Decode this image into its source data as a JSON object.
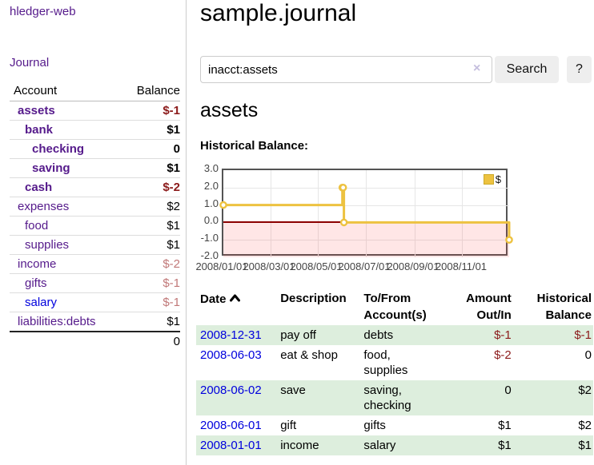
{
  "colors": {
    "link_purple": "#551a8b",
    "link_blue": "#0000dd",
    "negative_strong": "#8b1a1a",
    "negative_soft": "#c17878",
    "row_green": "#ddeedd",
    "series_yellow": "#edc240",
    "zero_line_red": "#8b0000",
    "negative_region_pink": "#fbdcdc"
  },
  "sidebar": {
    "title": "hledger-web",
    "journal_link": "Journal",
    "accounts": {
      "header_account": "Account",
      "header_balance": "Balance",
      "rows": [
        {
          "name": "assets",
          "balance": "$-1"
        },
        {
          "name": "bank",
          "balance": "$1"
        },
        {
          "name": "checking",
          "balance": "0"
        },
        {
          "name": "saving",
          "balance": "$1"
        },
        {
          "name": "cash",
          "balance": "$-2"
        },
        {
          "name": "expenses",
          "balance": "$2"
        },
        {
          "name": "food",
          "balance": "$1"
        },
        {
          "name": "supplies",
          "balance": "$1"
        },
        {
          "name": "income",
          "balance": "$-2"
        },
        {
          "name": "gifts",
          "balance": "$-1"
        },
        {
          "name": "salary",
          "balance": "$-1"
        },
        {
          "name": "liabilities:debts",
          "balance": "$1"
        }
      ],
      "total": "0"
    }
  },
  "main": {
    "title": "sample.journal",
    "search": {
      "value": "inacct:assets",
      "clear_icon": "×",
      "search_button": "Search",
      "help_button": "?"
    },
    "heading": "assets",
    "chart_title": "Historical Balance:"
  },
  "chart_data": {
    "type": "line",
    "style": "step",
    "title": "Historical Balance",
    "series": [
      {
        "name": "$",
        "points": [
          [
            "2008-01-01",
            1
          ],
          [
            "2008-06-01",
            2
          ],
          [
            "2008-06-02",
            2
          ],
          [
            "2008-06-03",
            0
          ],
          [
            "2008-12-31",
            -1
          ]
        ]
      }
    ],
    "x_range": [
      "2008-01-01",
      "2008-12-31"
    ],
    "ylim": [
      -2,
      3
    ],
    "y_ticks": [
      "3.0",
      "2.0",
      "1.0",
      "0.0",
      "-1.0",
      "-2.0"
    ],
    "x_ticks": [
      "2008/01/01",
      "2008/03/01",
      "2008/05/01",
      "2008/07/01",
      "2008/09/01",
      "2008/11/01"
    ],
    "legend": {
      "label": "$",
      "position": "top-right"
    },
    "grid": true,
    "negative_region_shaded": true,
    "zero_line": true
  },
  "transactions": {
    "headers": {
      "date": "Date",
      "description": "Description",
      "tofrom_line1": "To/From",
      "tofrom_line2": "Account(s)",
      "amount_line1": "Amount",
      "amount_line2": "Out/In",
      "hist_line1": "Historical",
      "hist_line2": "Balance"
    },
    "rows": [
      {
        "date": "2008-12-31",
        "description": "pay off",
        "accounts": "debts",
        "amount": "$-1",
        "balance": "$-1"
      },
      {
        "date": "2008-06-03",
        "description": "eat & shop",
        "accounts": "food, supplies",
        "amount": "$-2",
        "balance": "0"
      },
      {
        "date": "2008-06-02",
        "description": "save",
        "accounts": "saving, checking",
        "amount": "0",
        "balance": "$2"
      },
      {
        "date": "2008-06-01",
        "description": "gift",
        "accounts": "gifts",
        "amount": "$1",
        "balance": "$2"
      },
      {
        "date": "2008-01-01",
        "description": "income",
        "accounts": "salary",
        "amount": "$1",
        "balance": "$1"
      }
    ]
  }
}
